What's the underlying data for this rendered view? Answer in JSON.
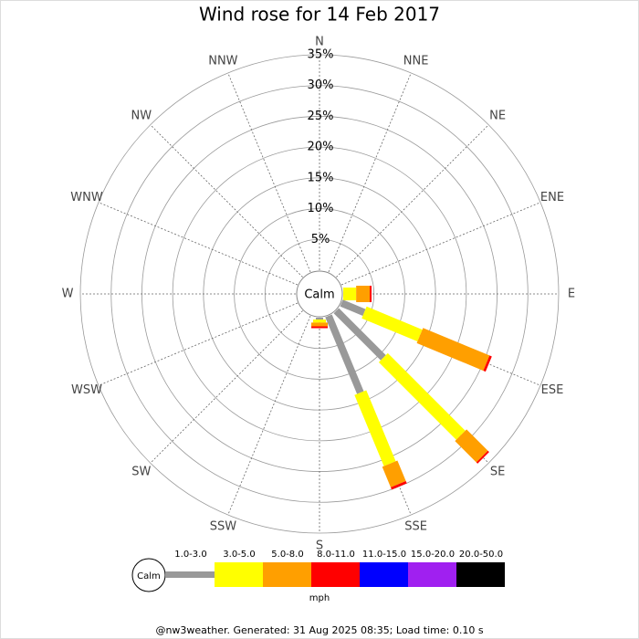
{
  "chart_data": {
    "type": "windrose",
    "title": "Wind rose for 14 Feb 2017",
    "categories": [
      "N",
      "NNE",
      "NE",
      "ENE",
      "E",
      "ESE",
      "SE",
      "SSE",
      "S",
      "SSW",
      "SW",
      "WSW",
      "W",
      "WNW",
      "NW",
      "NNW"
    ],
    "series": [
      {
        "name": "1.0-3.0",
        "color": "#999999",
        "values": [
          0,
          0,
          0,
          0,
          0,
          4.0,
          10.8,
          13.5,
          0.3,
          0,
          0,
          0,
          0,
          0,
          0,
          0
        ]
      },
      {
        "name": "3.0-5.0",
        "color": "#ffff00",
        "values": [
          0,
          0,
          0,
          0,
          2.1,
          9.8,
          17.8,
          12.5,
          0.5,
          0,
          0,
          0,
          0,
          0,
          0,
          0
        ]
      },
      {
        "name": "5.0-8.0",
        "color": "#ff9f00",
        "values": [
          0,
          0,
          0,
          0,
          2.2,
          11.7,
          4.9,
          3.6,
          0.6,
          0,
          0,
          0,
          0,
          0,
          0,
          0
        ]
      },
      {
        "name": "8.0-11.0",
        "color": "#ff0000",
        "values": [
          0,
          0,
          0,
          0,
          0.3,
          0.4,
          0.3,
          0.4,
          0.3,
          0,
          0,
          0,
          0,
          0,
          0,
          0
        ]
      },
      {
        "name": "11.0-15.0",
        "color": "#0000ff",
        "values": [
          0,
          0,
          0,
          0,
          0,
          0,
          0,
          0,
          0,
          0,
          0,
          0,
          0,
          0,
          0,
          0
        ]
      },
      {
        "name": "15.0-20.0",
        "color": "#a020f0",
        "values": [
          0,
          0,
          0,
          0,
          0,
          0,
          0,
          0,
          0,
          0,
          0,
          0,
          0,
          0,
          0,
          0
        ]
      },
      {
        "name": "20.0-50.0",
        "color": "#000000",
        "values": [
          0,
          0,
          0,
          0,
          0,
          0,
          0,
          0,
          0,
          0,
          0,
          0,
          0,
          0,
          0,
          0
        ]
      }
    ],
    "ylim": [
      0,
      35
    ],
    "yticks": [
      {
        "value": 5,
        "label": "5%"
      },
      {
        "value": 10,
        "label": "10%"
      },
      {
        "value": 15,
        "label": "15%"
      },
      {
        "value": 20,
        "label": "20%"
      },
      {
        "value": 25,
        "label": "25%"
      },
      {
        "value": 30,
        "label": "30%"
      },
      {
        "value": 35,
        "label": "35%"
      }
    ],
    "calm_label": "Calm",
    "units": "mph",
    "footer": "@nw3weather. Generated: 31 Aug 2025 08:35; Load time: 0.10 s"
  }
}
